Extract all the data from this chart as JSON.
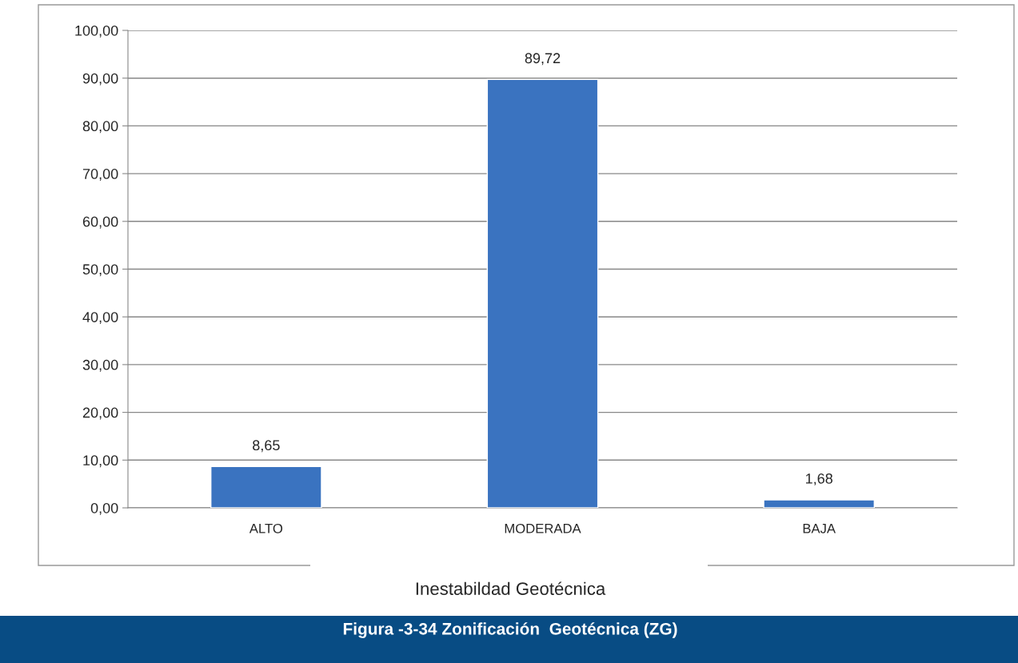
{
  "chart_data": {
    "type": "bar",
    "title": "Figura -3-34 Zonificación  Geotécnica (ZG)",
    "xlabel": "Inestabildad Geotécnica",
    "categories": [
      "ALTO",
      "MODERADA",
      "BAJA"
    ],
    "values": [
      8.65,
      89.72,
      1.68
    ],
    "color": "#3a73c0",
    "value_labels": [
      "8,65",
      "89,72",
      "1,68"
    ],
    "ylim": [
      0,
      100
    ],
    "yticks": [
      {
        "value": 0,
        "label": "0,00"
      },
      {
        "value": 10,
        "label": "10,00"
      },
      {
        "value": 20,
        "label": "20,00"
      },
      {
        "value": 30,
        "label": "30,00"
      },
      {
        "value": 40,
        "label": "40,00"
      },
      {
        "value": 50,
        "label": "50,00"
      },
      {
        "value": 60,
        "label": "60,00"
      },
      {
        "value": 70,
        "label": "70,00"
      },
      {
        "value": 80,
        "label": "80,00"
      },
      {
        "value": 90,
        "label": "90,00"
      },
      {
        "value": 100,
        "label": "100,00"
      }
    ],
    "grid": "y"
  }
}
